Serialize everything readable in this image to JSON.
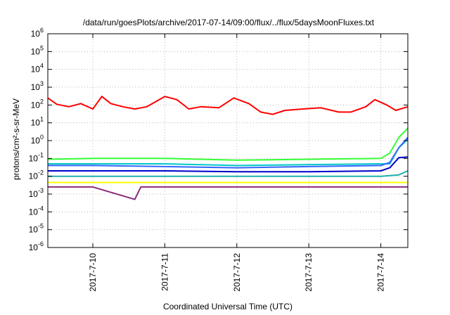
{
  "chart_data": {
    "type": "line",
    "title": "/data/run/goesPlots/archive/2017-07-14/09:00/flux/../flux/5daysMoonFluxes.txt",
    "xlabel": "Coordinated Universal Time (UTC)",
    "ylabel": "protons/cm²-s-sr-MeV",
    "y_scale": "log",
    "ylim": [
      1e-06,
      1000000.0
    ],
    "xlim": [
      "2017-07-09 09:00",
      "2017-07-14 09:00"
    ],
    "grid": true,
    "legend": "none",
    "y_ticks": [
      {
        "base": "10",
        "exp": "-6"
      },
      {
        "base": "10",
        "exp": "-5"
      },
      {
        "base": "10",
        "exp": "-4"
      },
      {
        "base": "10",
        "exp": "-3"
      },
      {
        "base": "10",
        "exp": "-2"
      },
      {
        "base": "10",
        "exp": "-1"
      },
      {
        "base": "10",
        "exp": "0"
      },
      {
        "base": "10",
        "exp": "1"
      },
      {
        "base": "10",
        "exp": "2"
      },
      {
        "base": "10",
        "exp": "3"
      },
      {
        "base": "10",
        "exp": "4"
      },
      {
        "base": "10",
        "exp": "5"
      },
      {
        "base": "10",
        "exp": "6"
      }
    ],
    "x_ticks": [
      "2017-7-10",
      "2017-7-11",
      "2017-7-12",
      "2017-7-13",
      "2017-7-14"
    ],
    "series": [
      {
        "color": "#ff0000",
        "points": [
          [
            "2017-07-09 09:00",
            250
          ],
          [
            "2017-07-09 12:00",
            110
          ],
          [
            "2017-07-09 16:00",
            80
          ],
          [
            "2017-07-09 20:00",
            120
          ],
          [
            "2017-07-10 00:00",
            60
          ],
          [
            "2017-07-10 03:00",
            300
          ],
          [
            "2017-07-10 06:00",
            120
          ],
          [
            "2017-07-10 10:00",
            80
          ],
          [
            "2017-07-10 14:00",
            60
          ],
          [
            "2017-07-10 18:00",
            80
          ],
          [
            "2017-07-11 00:00",
            300
          ],
          [
            "2017-07-11 04:00",
            200
          ],
          [
            "2017-07-11 08:00",
            60
          ],
          [
            "2017-07-11 12:00",
            80
          ],
          [
            "2017-07-11 18:00",
            70
          ],
          [
            "2017-07-11 23:00",
            250
          ],
          [
            "2017-07-12 04:00",
            120
          ],
          [
            "2017-07-12 08:00",
            40
          ],
          [
            "2017-07-12 12:00",
            30
          ],
          [
            "2017-07-12 16:00",
            50
          ],
          [
            "2017-07-12 22:00",
            60
          ],
          [
            "2017-07-13 04:00",
            70
          ],
          [
            "2017-07-13 10:00",
            40
          ],
          [
            "2017-07-13 14:00",
            40
          ],
          [
            "2017-07-13 19:00",
            80
          ],
          [
            "2017-07-13 22:00",
            200
          ],
          [
            "2017-07-14 02:00",
            100
          ],
          [
            "2017-07-14 05:00",
            50
          ],
          [
            "2017-07-14 09:00",
            80
          ]
        ]
      },
      {
        "color": "#33ff33",
        "points": [
          [
            "2017-07-09 09:00",
            0.09
          ],
          [
            "2017-07-10 00:00",
            0.1
          ],
          [
            "2017-07-11 00:00",
            0.1
          ],
          [
            "2017-07-12 00:00",
            0.08
          ],
          [
            "2017-07-13 00:00",
            0.09
          ],
          [
            "2017-07-14 00:00",
            0.1
          ],
          [
            "2017-07-14 03:00",
            0.2
          ],
          [
            "2017-07-14 06:00",
            1.5
          ],
          [
            "2017-07-14 09:00",
            5
          ]
        ]
      },
      {
        "color": "#00c8c8",
        "points": [
          [
            "2017-07-09 09:00",
            0.05
          ],
          [
            "2017-07-10 00:00",
            0.05
          ],
          [
            "2017-07-11 00:00",
            0.05
          ],
          [
            "2017-07-12 00:00",
            0.04
          ],
          [
            "2017-07-13 00:00",
            0.045
          ],
          [
            "2017-07-14 00:00",
            0.05
          ],
          [
            "2017-07-14 03:00",
            0.05
          ],
          [
            "2017-07-14 06:00",
            0.4
          ],
          [
            "2017-07-14 09:00",
            1.2
          ]
        ]
      },
      {
        "color": "#3366ff",
        "points": [
          [
            "2017-07-09 09:00",
            0.04
          ],
          [
            "2017-07-10 00:00",
            0.04
          ],
          [
            "2017-07-11 00:00",
            0.035
          ],
          [
            "2017-07-12 00:00",
            0.03
          ],
          [
            "2017-07-13 00:00",
            0.035
          ],
          [
            "2017-07-14 00:00",
            0.04
          ],
          [
            "2017-07-14 03:00",
            0.06
          ],
          [
            "2017-07-14 06:00",
            0.4
          ],
          [
            "2017-07-14 09:00",
            1.5
          ]
        ]
      },
      {
        "color": "#0000cc",
        "points": [
          [
            "2017-07-09 09:00",
            0.02
          ],
          [
            "2017-07-10 00:00",
            0.02
          ],
          [
            "2017-07-11 00:00",
            0.02
          ],
          [
            "2017-07-12 00:00",
            0.018
          ],
          [
            "2017-07-13 00:00",
            0.018
          ],
          [
            "2017-07-14 00:00",
            0.02
          ],
          [
            "2017-07-14 03:00",
            0.03
          ],
          [
            "2017-07-14 06:00",
            0.11
          ],
          [
            "2017-07-14 09:00",
            0.12
          ]
        ]
      },
      {
        "color": "#20b2aa",
        "points": [
          [
            "2017-07-09 09:00",
            0.01
          ],
          [
            "2017-07-10 00:00",
            0.01
          ],
          [
            "2017-07-11 00:00",
            0.01
          ],
          [
            "2017-07-12 00:00",
            0.01
          ],
          [
            "2017-07-13 00:00",
            0.01
          ],
          [
            "2017-07-14 00:00",
            0.01
          ],
          [
            "2017-07-14 06:00",
            0.012
          ],
          [
            "2017-07-14 09:00",
            0.02
          ]
        ]
      },
      {
        "color": "#ffff00",
        "points": [
          [
            "2017-07-09 09:00",
            0.0045
          ],
          [
            "2017-07-10 00:00",
            0.0045
          ],
          [
            "2017-07-11 00:00",
            0.0045
          ],
          [
            "2017-07-12 00:00",
            0.0045
          ],
          [
            "2017-07-13 00:00",
            0.0045
          ],
          [
            "2017-07-14 00:00",
            0.0045
          ],
          [
            "2017-07-14 09:00",
            0.0045
          ]
        ]
      },
      {
        "color": "#8b2b7a",
        "points": [
          [
            "2017-07-09 09:00",
            0.0025
          ],
          [
            "2017-07-10 00:00",
            0.0025
          ],
          [
            "2017-07-10 14:00",
            0.0005
          ],
          [
            "2017-07-10 16:00",
            0.0025
          ],
          [
            "2017-07-11 00:00",
            0.0025
          ],
          [
            "2017-07-12 00:00",
            0.0025
          ],
          [
            "2017-07-13 00:00",
            0.0025
          ],
          [
            "2017-07-14 00:00",
            0.0025
          ],
          [
            "2017-07-14 09:00",
            0.0025
          ]
        ]
      }
    ]
  }
}
